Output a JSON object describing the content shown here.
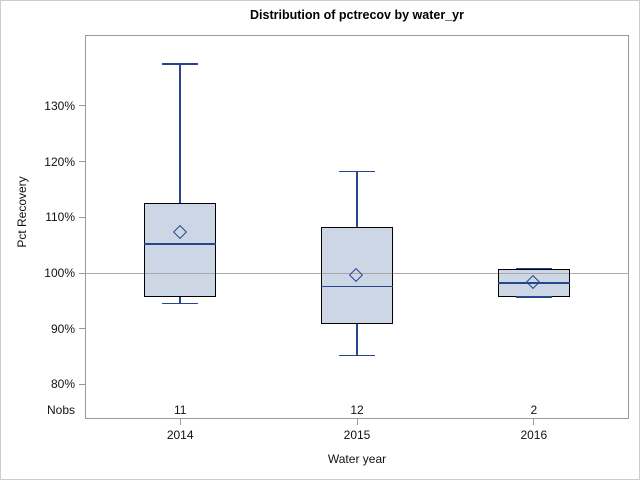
{
  "chart_data": {
    "type": "box",
    "title": "Distribution of pctrecov by water_yr",
    "xlabel": "Water year",
    "ylabel": "Pct Recovery",
    "nobs_label": "Nobs",
    "categories": [
      "2014",
      "2015",
      "2016"
    ],
    "nobs": [
      "11",
      "12",
      "2"
    ],
    "yticks": [
      {
        "value": 80,
        "label": "80%"
      },
      {
        "value": 90,
        "label": "90%"
      },
      {
        "value": 100,
        "label": "100%"
      },
      {
        "value": 110,
        "label": "110%"
      },
      {
        "value": 120,
        "label": "120%"
      },
      {
        "value": 130,
        "label": "130%"
      }
    ],
    "ylim": [
      74,
      143
    ],
    "reference_line": 100,
    "grid": false,
    "legend": "none",
    "series": [
      {
        "category": "2014",
        "n": 11,
        "whisker_low": 94.5,
        "q1": 95.7,
        "median": 105.2,
        "q3": 112.6,
        "whisker_high": 137.5,
        "mean": 107.3
      },
      {
        "category": "2015",
        "n": 12,
        "whisker_low": 85.2,
        "q1": 90.9,
        "median": 97.6,
        "q3": 108.3,
        "whisker_high": 118.2,
        "mean": 99.6
      },
      {
        "category": "2016",
        "n": 2,
        "whisker_low": 95.7,
        "q1": 95.7,
        "median": 98.2,
        "q3": 100.8,
        "whisker_high": 100.8,
        "mean": 98.2
      }
    ],
    "colors": {
      "box_fill": "#ccd6e4",
      "box_border": "#000000",
      "line": "#26478d",
      "reference_line": "#a8a8a8",
      "frame": "#949ca1",
      "text": "#111111"
    }
  }
}
